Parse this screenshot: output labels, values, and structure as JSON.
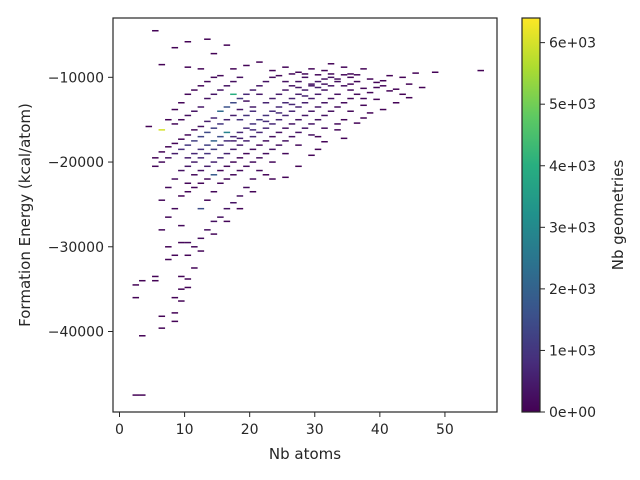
{
  "chart_data": {
    "type": "heatmap",
    "title": "",
    "xlabel": "Nb atoms",
    "ylabel": "Formation Energy (kcal/atom)",
    "xlim": [
      -1,
      58
    ],
    "ylim": [
      -49500,
      -3000
    ],
    "x_ticks": [
      0,
      10,
      20,
      30,
      40,
      50
    ],
    "y_ticks": [
      -40000,
      -30000,
      -20000,
      -10000
    ],
    "x_tick_labels": [
      "0",
      "10",
      "20",
      "30",
      "40",
      "50"
    ],
    "y_tick_labels": [
      "−40000",
      "−30000",
      "−20000",
      "−10000"
    ],
    "colorbar": {
      "label": "Nb geometries",
      "colormap": "viridis",
      "range": [
        0,
        6400
      ],
      "ticks": [
        0,
        1000,
        2000,
        3000,
        4000,
        5000,
        6000
      ],
      "tick_labels": [
        "0e+00",
        "1e+03",
        "2e+03",
        "3e+03",
        "4e+03",
        "5e+03",
        "6e+03"
      ]
    },
    "bins": {
      "x_width": 1,
      "y_height": 170
    },
    "cells": [
      [
        2,
        -47500,
        40
      ],
      [
        3,
        -47500,
        40
      ],
      [
        3,
        -40500,
        40
      ],
      [
        2,
        -36000,
        40
      ],
      [
        2,
        -34500,
        40
      ],
      [
        3,
        -34000,
        40
      ],
      [
        5,
        -34000,
        40
      ],
      [
        5,
        -33500,
        40
      ],
      [
        6,
        -38200,
        40
      ],
      [
        6,
        -39600,
        40
      ],
      [
        8,
        -38800,
        40
      ],
      [
        8,
        -37800,
        40
      ],
      [
        7,
        -31500,
        60
      ],
      [
        8,
        -31000,
        60
      ],
      [
        6,
        -28000,
        80
      ],
      [
        7,
        -30000,
        60
      ],
      [
        9,
        -29500,
        60
      ],
      [
        10,
        -31000,
        60
      ],
      [
        9,
        -33500,
        60
      ],
      [
        10,
        -34800,
        60
      ],
      [
        8,
        -36000,
        40
      ],
      [
        9,
        -36400,
        40
      ],
      [
        5,
        -4500,
        40
      ],
      [
        8,
        -6500,
        40
      ],
      [
        10,
        -5800,
        40
      ],
      [
        13,
        -5500,
        40
      ],
      [
        6,
        -8500,
        40
      ],
      [
        10,
        -8800,
        40
      ],
      [
        12,
        -9000,
        60
      ],
      [
        14,
        -7200,
        40
      ],
      [
        16,
        -6200,
        40
      ],
      [
        17,
        -9000,
        60
      ],
      [
        19,
        -8600,
        60
      ],
      [
        21,
        -8200,
        60
      ],
      [
        23,
        -9200,
        80
      ],
      [
        25,
        -8800,
        80
      ],
      [
        27,
        -9400,
        80
      ],
      [
        29,
        -9000,
        80
      ],
      [
        31,
        -9200,
        100
      ],
      [
        32,
        -8400,
        80
      ],
      [
        34,
        -8800,
        80
      ],
      [
        35,
        -9600,
        80
      ],
      [
        37,
        -9000,
        60
      ],
      [
        38,
        -10200,
        60
      ],
      [
        40,
        -10400,
        60
      ],
      [
        41,
        -9800,
        40
      ],
      [
        43,
        -10000,
        40
      ],
      [
        44,
        -12400,
        40
      ],
      [
        45,
        -9500,
        40
      ],
      [
        48,
        -9400,
        40
      ],
      [
        55,
        -9200,
        40
      ],
      [
        46,
        -11200,
        40
      ],
      [
        42,
        -13000,
        40
      ],
      [
        40,
        -13800,
        40
      ],
      [
        39,
        -12600,
        60
      ],
      [
        37,
        -14800,
        60
      ],
      [
        36,
        -15400,
        60
      ],
      [
        34,
        -15000,
        80
      ],
      [
        33,
        -16200,
        80
      ],
      [
        31,
        -17600,
        60
      ],
      [
        30,
        -18500,
        60
      ],
      [
        29,
        -19200,
        60
      ],
      [
        27,
        -20500,
        40
      ],
      [
        25,
        -21800,
        60
      ],
      [
        23,
        -22000,
        80
      ],
      [
        21,
        -21000,
        200
      ],
      [
        20,
        -22000,
        200
      ],
      [
        19,
        -23000,
        200
      ],
      [
        18,
        -24000,
        250
      ],
      [
        17,
        -24800,
        300
      ],
      [
        16,
        -25500,
        300
      ],
      [
        15,
        -26500,
        250
      ],
      [
        14,
        -27000,
        250
      ],
      [
        13,
        -28000,
        250
      ],
      [
        12,
        -29000,
        200
      ],
      [
        11,
        -30000,
        150
      ],
      [
        10,
        -29500,
        150
      ],
      [
        9,
        -27500,
        150
      ],
      [
        8,
        -25500,
        150
      ],
      [
        7,
        -26500,
        100
      ],
      [
        6,
        -24500,
        100
      ],
      [
        7,
        -23000,
        120
      ],
      [
        8,
        -22000,
        200
      ],
      [
        9,
        -21000,
        300
      ],
      [
        10,
        -20500,
        400
      ],
      [
        11,
        -20000,
        500
      ],
      [
        12,
        -19500,
        700
      ],
      [
        13,
        -19000,
        900
      ],
      [
        14,
        -18500,
        1100
      ],
      [
        15,
        -18000,
        900
      ],
      [
        16,
        -17500,
        800
      ],
      [
        17,
        -17000,
        700
      ],
      [
        18,
        -16500,
        700
      ],
      [
        19,
        -16000,
        800
      ],
      [
        20,
        -15500,
        900
      ],
      [
        21,
        -15000,
        1000
      ],
      [
        22,
        -14500,
        900
      ],
      [
        23,
        -14000,
        800
      ],
      [
        24,
        -13500,
        700
      ],
      [
        25,
        -13000,
        700
      ],
      [
        26,
        -12500,
        600
      ],
      [
        27,
        -12000,
        500
      ],
      [
        28,
        -11500,
        500
      ],
      [
        29,
        -11000,
        400
      ],
      [
        30,
        -10500,
        400
      ],
      [
        31,
        -10200,
        300
      ],
      [
        32,
        -10000,
        300
      ],
      [
        33,
        -10500,
        250
      ],
      [
        34,
        -11000,
        250
      ],
      [
        35,
        -11500,
        200
      ],
      [
        36,
        -12000,
        150
      ],
      [
        37,
        -12500,
        120
      ],
      [
        38,
        -11800,
        100
      ],
      [
        39,
        -11200,
        80
      ],
      [
        40,
        -11000,
        80
      ],
      [
        41,
        -11600,
        60
      ],
      [
        36,
        -10500,
        100
      ],
      [
        35,
        -10000,
        120
      ],
      [
        33,
        -12000,
        250
      ],
      [
        32,
        -12500,
        300
      ],
      [
        31,
        -13000,
        350
      ],
      [
        30,
        -13500,
        400
      ],
      [
        29,
        -14000,
        400
      ],
      [
        28,
        -14500,
        400
      ],
      [
        27,
        -15000,
        350
      ],
      [
        26,
        -15500,
        350
      ],
      [
        25,
        -16000,
        300
      ],
      [
        24,
        -16500,
        300
      ],
      [
        23,
        -17000,
        250
      ],
      [
        22,
        -17500,
        250
      ],
      [
        21,
        -18000,
        200
      ],
      [
        20,
        -18500,
        200
      ],
      [
        19,
        -19000,
        150
      ],
      [
        18,
        -19500,
        150
      ],
      [
        17,
        -20000,
        120
      ],
      [
        16,
        -20500,
        120
      ],
      [
        15,
        -21000,
        100
      ],
      [
        14,
        -21500,
        1800
      ],
      [
        13,
        -22000,
        100
      ],
      [
        12,
        -22500,
        80
      ],
      [
        11,
        -23000,
        80
      ],
      [
        10,
        -23500,
        60
      ],
      [
        9,
        -24000,
        60
      ],
      [
        12,
        -25500,
        1500
      ],
      [
        13,
        -24500,
        80
      ],
      [
        14,
        -23500,
        100
      ],
      [
        15,
        -22500,
        120
      ],
      [
        16,
        -22000,
        150
      ],
      [
        17,
        -21500,
        150
      ],
      [
        18,
        -21000,
        200
      ],
      [
        19,
        -20500,
        200
      ],
      [
        20,
        -20000,
        200
      ],
      [
        21,
        -19500,
        250
      ],
      [
        22,
        -19000,
        250
      ],
      [
        23,
        -18500,
        300
      ],
      [
        24,
        -18000,
        300
      ],
      [
        25,
        -17500,
        300
      ],
      [
        26,
        -17000,
        300
      ],
      [
        27,
        -16500,
        350
      ],
      [
        28,
        -16000,
        350
      ],
      [
        29,
        -15500,
        350
      ],
      [
        30,
        -15000,
        300
      ],
      [
        31,
        -14500,
        300
      ],
      [
        32,
        -14000,
        250
      ],
      [
        33,
        -13500,
        200
      ],
      [
        34,
        -13000,
        180
      ],
      [
        35,
        -12500,
        150
      ],
      [
        10,
        -22500,
        80
      ],
      [
        11,
        -21500,
        150
      ],
      [
        12,
        -21000,
        300
      ],
      [
        13,
        -20500,
        500
      ],
      [
        14,
        -20000,
        600
      ],
      [
        15,
        -19500,
        700
      ],
      [
        16,
        -19000,
        600
      ],
      [
        17,
        -18500,
        500
      ],
      [
        18,
        -18000,
        500
      ],
      [
        19,
        -17500,
        600
      ],
      [
        20,
        -17000,
        700
      ],
      [
        21,
        -16500,
        700
      ],
      [
        22,
        -16000,
        700
      ],
      [
        23,
        -15500,
        700
      ],
      [
        24,
        -15000,
        700
      ],
      [
        25,
        -14500,
        700
      ],
      [
        26,
        -14000,
        650
      ],
      [
        27,
        -13500,
        600
      ],
      [
        28,
        -13000,
        550
      ],
      [
        29,
        -12500,
        500
      ],
      [
        30,
        -12000,
        450
      ],
      [
        31,
        -11500,
        400
      ],
      [
        32,
        -11000,
        350
      ],
      [
        22,
        -13000,
        600
      ],
      [
        23,
        -12500,
        500
      ],
      [
        24,
        -12000,
        450
      ],
      [
        25,
        -11500,
        400
      ],
      [
        26,
        -11000,
        350
      ],
      [
        27,
        -10500,
        300
      ],
      [
        28,
        -10000,
        250
      ],
      [
        20,
        -13500,
        500
      ],
      [
        21,
        -12000,
        400
      ],
      [
        19,
        -12800,
        300
      ],
      [
        18,
        -13800,
        400
      ],
      [
        17,
        -14500,
        500
      ],
      [
        16,
        -15000,
        600
      ],
      [
        15,
        -15500,
        1000
      ],
      [
        14,
        -16000,
        1200
      ],
      [
        13,
        -16500,
        1400
      ],
      [
        12,
        -17000,
        1300
      ],
      [
        11,
        -17500,
        1200
      ],
      [
        10,
        -18000,
        1000
      ],
      [
        9,
        -18500,
        800
      ],
      [
        8,
        -19000,
        500
      ],
      [
        7,
        -19500,
        300
      ],
      [
        6,
        -20000,
        150
      ],
      [
        5,
        -20500,
        80
      ],
      [
        15,
        -14000,
        2200
      ],
      [
        16,
        -13500,
        1600
      ],
      [
        17,
        -13000,
        1400
      ],
      [
        18,
        -12500,
        1000
      ],
      [
        19,
        -12000,
        700
      ],
      [
        20,
        -11500,
        500
      ],
      [
        21,
        -11000,
        400
      ],
      [
        22,
        -10500,
        300
      ],
      [
        23,
        -10000,
        200
      ],
      [
        24,
        -9800,
        150
      ],
      [
        16,
        -16500,
        2800
      ],
      [
        15,
        -17000,
        1500
      ],
      [
        14,
        -17500,
        2000
      ],
      [
        13,
        -18000,
        1200
      ],
      [
        12,
        -18500,
        900
      ],
      [
        11,
        -19000,
        700
      ],
      [
        10,
        -19500,
        500
      ],
      [
        17,
        -12000,
        4000
      ],
      [
        18,
        -15000,
        900
      ],
      [
        19,
        -14500,
        900
      ],
      [
        20,
        -14000,
        800
      ],
      [
        14,
        -14800,
        700
      ],
      [
        13,
        -15200,
        500
      ],
      [
        12,
        -15800,
        300
      ],
      [
        11,
        -16200,
        200
      ],
      [
        10,
        -16800,
        150
      ],
      [
        9,
        -17300,
        100
      ],
      [
        8,
        -17800,
        80
      ],
      [
        7,
        -18200,
        60
      ],
      [
        6,
        -18800,
        60
      ],
      [
        5,
        -19500,
        40
      ],
      [
        6,
        -16200,
        6000
      ],
      [
        4,
        -15800,
        40
      ],
      [
        7,
        -15000,
        40
      ],
      [
        8,
        -13800,
        60
      ],
      [
        9,
        -13000,
        80
      ],
      [
        10,
        -12000,
        100
      ],
      [
        11,
        -11500,
        120
      ],
      [
        12,
        -11000,
        150
      ],
      [
        13,
        -10500,
        150
      ],
      [
        14,
        -10000,
        150
      ],
      [
        15,
        -9800,
        120
      ],
      [
        13,
        -12500,
        300
      ],
      [
        14,
        -12000,
        350
      ],
      [
        15,
        -11500,
        350
      ],
      [
        16,
        -11000,
        300
      ],
      [
        17,
        -10500,
        250
      ],
      [
        18,
        -10000,
        250
      ],
      [
        12,
        -13500,
        400
      ],
      [
        11,
        -14000,
        300
      ],
      [
        10,
        -14500,
        250
      ],
      [
        9,
        -15000,
        150
      ],
      [
        8,
        -15500,
        100
      ],
      [
        17,
        -17500,
        600
      ],
      [
        18,
        -17200,
        600
      ],
      [
        20,
        -16200,
        800
      ],
      [
        22,
        -15200,
        800
      ],
      [
        24,
        -14200,
        800
      ],
      [
        26,
        -13200,
        700
      ],
      [
        28,
        -12200,
        600
      ],
      [
        30,
        -11200,
        500
      ],
      [
        29,
        -16800,
        250
      ],
      [
        31,
        -16000,
        200
      ],
      [
        33,
        -15500,
        150
      ],
      [
        35,
        -14000,
        120
      ],
      [
        37,
        -13300,
        80
      ],
      [
        38,
        -14200,
        60
      ],
      [
        34,
        -17200,
        60
      ],
      [
        30,
        -17000,
        80
      ],
      [
        27,
        -18000,
        150
      ],
      [
        25,
        -19000,
        120
      ],
      [
        23,
        -20000,
        120
      ],
      [
        22,
        -21500,
        60
      ],
      [
        20,
        -23500,
        60
      ],
      [
        18,
        -25500,
        80
      ],
      [
        16,
        -27000,
        80
      ],
      [
        14,
        -28500,
        100
      ],
      [
        12,
        -30500,
        80
      ],
      [
        11,
        -32500,
        60
      ],
      [
        10,
        -33800,
        40
      ],
      [
        9,
        -35000,
        40
      ],
      [
        25,
        -10500,
        300
      ],
      [
        27,
        -11200,
        350
      ],
      [
        29,
        -10800,
        350
      ],
      [
        31,
        -10800,
        350
      ],
      [
        33,
        -10200,
        250
      ],
      [
        35,
        -10800,
        150
      ],
      [
        37,
        -11300,
        100
      ],
      [
        39,
        -10600,
        60
      ],
      [
        42,
        -11400,
        40
      ],
      [
        44,
        -10800,
        40
      ],
      [
        43,
        -12000,
        40
      ],
      [
        26,
        -9600,
        150
      ],
      [
        28,
        -9600,
        150
      ],
      [
        30,
        -9700,
        150
      ],
      [
        32,
        -9600,
        150
      ],
      [
        34,
        -9700,
        120
      ],
      [
        36,
        -9700,
        100
      ]
    ]
  }
}
